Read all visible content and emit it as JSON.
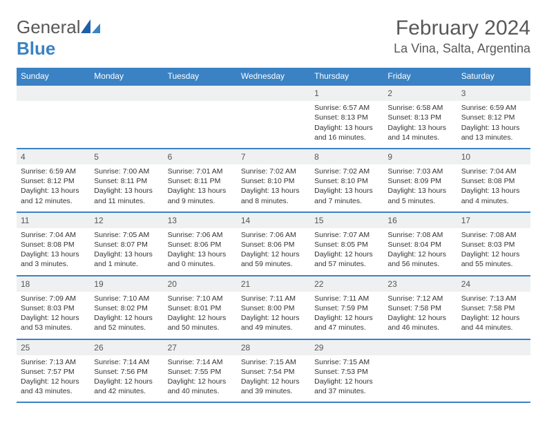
{
  "brand": {
    "part1": "General",
    "part2": "Blue"
  },
  "title": "February 2024",
  "location": "La Vina, Salta, Argentina",
  "colors": {
    "header_bg": "#3a82c4",
    "header_text": "#ffffff",
    "rule": "#3a82c4",
    "daynum_bg": "#eef0f1",
    "body_text": "#333333",
    "muted": "#585858"
  },
  "day_headers": [
    "Sunday",
    "Monday",
    "Tuesday",
    "Wednesday",
    "Thursday",
    "Friday",
    "Saturday"
  ],
  "weeks": [
    [
      null,
      null,
      null,
      null,
      {
        "n": "1",
        "sr": "Sunrise: 6:57 AM",
        "ss": "Sunset: 8:13 PM",
        "dl": "Daylight: 13 hours and 16 minutes."
      },
      {
        "n": "2",
        "sr": "Sunrise: 6:58 AM",
        "ss": "Sunset: 8:13 PM",
        "dl": "Daylight: 13 hours and 14 minutes."
      },
      {
        "n": "3",
        "sr": "Sunrise: 6:59 AM",
        "ss": "Sunset: 8:12 PM",
        "dl": "Daylight: 13 hours and 13 minutes."
      }
    ],
    [
      {
        "n": "4",
        "sr": "Sunrise: 6:59 AM",
        "ss": "Sunset: 8:12 PM",
        "dl": "Daylight: 13 hours and 12 minutes."
      },
      {
        "n": "5",
        "sr": "Sunrise: 7:00 AM",
        "ss": "Sunset: 8:11 PM",
        "dl": "Daylight: 13 hours and 11 minutes."
      },
      {
        "n": "6",
        "sr": "Sunrise: 7:01 AM",
        "ss": "Sunset: 8:11 PM",
        "dl": "Daylight: 13 hours and 9 minutes."
      },
      {
        "n": "7",
        "sr": "Sunrise: 7:02 AM",
        "ss": "Sunset: 8:10 PM",
        "dl": "Daylight: 13 hours and 8 minutes."
      },
      {
        "n": "8",
        "sr": "Sunrise: 7:02 AM",
        "ss": "Sunset: 8:10 PM",
        "dl": "Daylight: 13 hours and 7 minutes."
      },
      {
        "n": "9",
        "sr": "Sunrise: 7:03 AM",
        "ss": "Sunset: 8:09 PM",
        "dl": "Daylight: 13 hours and 5 minutes."
      },
      {
        "n": "10",
        "sr": "Sunrise: 7:04 AM",
        "ss": "Sunset: 8:08 PM",
        "dl": "Daylight: 13 hours and 4 minutes."
      }
    ],
    [
      {
        "n": "11",
        "sr": "Sunrise: 7:04 AM",
        "ss": "Sunset: 8:08 PM",
        "dl": "Daylight: 13 hours and 3 minutes."
      },
      {
        "n": "12",
        "sr": "Sunrise: 7:05 AM",
        "ss": "Sunset: 8:07 PM",
        "dl": "Daylight: 13 hours and 1 minute."
      },
      {
        "n": "13",
        "sr": "Sunrise: 7:06 AM",
        "ss": "Sunset: 8:06 PM",
        "dl": "Daylight: 13 hours and 0 minutes."
      },
      {
        "n": "14",
        "sr": "Sunrise: 7:06 AM",
        "ss": "Sunset: 8:06 PM",
        "dl": "Daylight: 12 hours and 59 minutes."
      },
      {
        "n": "15",
        "sr": "Sunrise: 7:07 AM",
        "ss": "Sunset: 8:05 PM",
        "dl": "Daylight: 12 hours and 57 minutes."
      },
      {
        "n": "16",
        "sr": "Sunrise: 7:08 AM",
        "ss": "Sunset: 8:04 PM",
        "dl": "Daylight: 12 hours and 56 minutes."
      },
      {
        "n": "17",
        "sr": "Sunrise: 7:08 AM",
        "ss": "Sunset: 8:03 PM",
        "dl": "Daylight: 12 hours and 55 minutes."
      }
    ],
    [
      {
        "n": "18",
        "sr": "Sunrise: 7:09 AM",
        "ss": "Sunset: 8:03 PM",
        "dl": "Daylight: 12 hours and 53 minutes."
      },
      {
        "n": "19",
        "sr": "Sunrise: 7:10 AM",
        "ss": "Sunset: 8:02 PM",
        "dl": "Daylight: 12 hours and 52 minutes."
      },
      {
        "n": "20",
        "sr": "Sunrise: 7:10 AM",
        "ss": "Sunset: 8:01 PM",
        "dl": "Daylight: 12 hours and 50 minutes."
      },
      {
        "n": "21",
        "sr": "Sunrise: 7:11 AM",
        "ss": "Sunset: 8:00 PM",
        "dl": "Daylight: 12 hours and 49 minutes."
      },
      {
        "n": "22",
        "sr": "Sunrise: 7:11 AM",
        "ss": "Sunset: 7:59 PM",
        "dl": "Daylight: 12 hours and 47 minutes."
      },
      {
        "n": "23",
        "sr": "Sunrise: 7:12 AM",
        "ss": "Sunset: 7:58 PM",
        "dl": "Daylight: 12 hours and 46 minutes."
      },
      {
        "n": "24",
        "sr": "Sunrise: 7:13 AM",
        "ss": "Sunset: 7:58 PM",
        "dl": "Daylight: 12 hours and 44 minutes."
      }
    ],
    [
      {
        "n": "25",
        "sr": "Sunrise: 7:13 AM",
        "ss": "Sunset: 7:57 PM",
        "dl": "Daylight: 12 hours and 43 minutes."
      },
      {
        "n": "26",
        "sr": "Sunrise: 7:14 AM",
        "ss": "Sunset: 7:56 PM",
        "dl": "Daylight: 12 hours and 42 minutes."
      },
      {
        "n": "27",
        "sr": "Sunrise: 7:14 AM",
        "ss": "Sunset: 7:55 PM",
        "dl": "Daylight: 12 hours and 40 minutes."
      },
      {
        "n": "28",
        "sr": "Sunrise: 7:15 AM",
        "ss": "Sunset: 7:54 PM",
        "dl": "Daylight: 12 hours and 39 minutes."
      },
      {
        "n": "29",
        "sr": "Sunrise: 7:15 AM",
        "ss": "Sunset: 7:53 PM",
        "dl": "Daylight: 12 hours and 37 minutes."
      },
      null,
      null
    ]
  ]
}
